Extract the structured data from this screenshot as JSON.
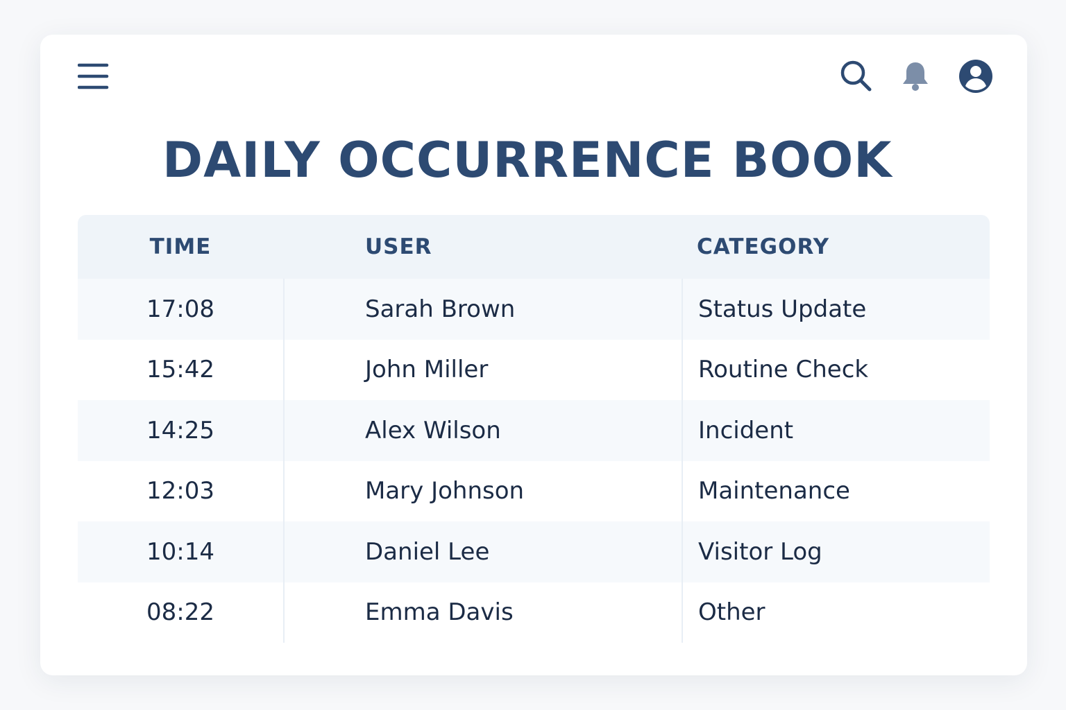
{
  "header": {
    "title": "DAILY OCCURRENCE BOOK"
  },
  "table": {
    "columns": [
      "TIME",
      "USER",
      "CATEGORY"
    ],
    "rows": [
      [
        "17:08",
        "Sarah Brown",
        "Status Update"
      ],
      [
        "15:42",
        "John Miller",
        "Routine Check"
      ],
      [
        "14:25",
        "Alex Wilson",
        "Incident"
      ],
      [
        "12:03",
        "Mary Johnson",
        "Maintenance"
      ],
      [
        "10:14",
        "Daniel Lee",
        "Visitor Log"
      ],
      [
        "08:22",
        "Emma Davis",
        "Other"
      ]
    ]
  }
}
